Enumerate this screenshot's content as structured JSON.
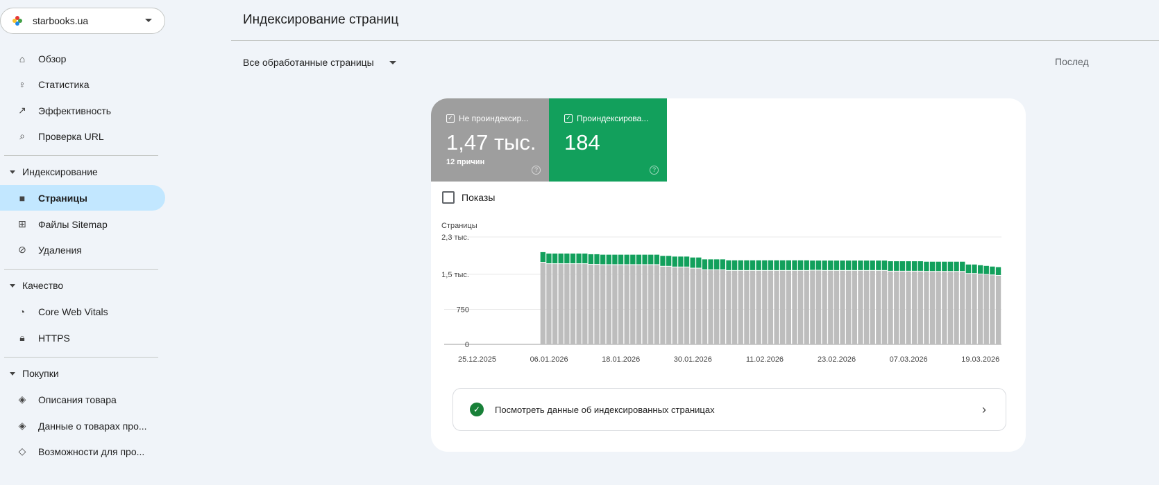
{
  "property": {
    "name": "starbooks.ua"
  },
  "sidebar": {
    "items": [
      {
        "label": "Обзор",
        "icon": "home-icon"
      },
      {
        "label": "Статистика",
        "icon": "lightbulb-icon"
      },
      {
        "label": "Эффективность",
        "icon": "trending-up-icon"
      },
      {
        "label": "Проверка URL",
        "icon": "search-icon"
      }
    ],
    "indexing": {
      "label": "Индексирование",
      "items": [
        {
          "label": "Страницы",
          "icon": "pages-icon"
        },
        {
          "label": "Файлы Sitemap",
          "icon": "sitemap-icon"
        },
        {
          "label": "Удаления",
          "icon": "eye-off-icon"
        }
      ]
    },
    "quality": {
      "label": "Качество",
      "items": [
        {
          "label": "Core Web Vitals",
          "icon": "gauge-icon"
        },
        {
          "label": "HTTPS",
          "icon": "lock-icon"
        }
      ]
    },
    "shopping": {
      "label": "Покупки",
      "items": [
        {
          "label": "Описания товара",
          "icon": "layers-icon"
        },
        {
          "label": "Данные о товарах про...",
          "icon": "layers-icon"
        },
        {
          "label": "Возможности для про...",
          "icon": "tag-icon"
        }
      ]
    }
  },
  "header": {
    "title": "Индексирование страниц",
    "filter": "Все обработанные страницы",
    "last": "Послед"
  },
  "tiles": {
    "not_indexed": {
      "label": "Не проиндексир...",
      "value": "1,47 тыс.",
      "sub": "12 причин",
      "color": "#9e9e9e"
    },
    "indexed": {
      "label": "Проиндексирова...",
      "value": "184",
      "color": "#12a05c"
    }
  },
  "shows_label": "Показы",
  "link_label": "Посмотреть данные об индексированных страницах",
  "chart_data": {
    "type": "bar",
    "stacked": true,
    "ylabel": "Страницы",
    "ylim": [
      0,
      2300
    ],
    "yticks": [
      {
        "v": 0,
        "label": "0"
      },
      {
        "v": 750,
        "label": "750"
      },
      {
        "v": 1500,
        "label": "1,5 тыс."
      },
      {
        "v": 2300,
        "label": "2,3 тыс."
      }
    ],
    "xtick_labels": [
      "25.12.2025",
      "06.01.2026",
      "18.01.2026",
      "30.01.2026",
      "11.02.2026",
      "23.02.2026",
      "07.03.2026",
      "19.03.2026"
    ],
    "start_date": "20.12.2025",
    "zero_days": 16,
    "series": [
      {
        "name": "Не проиндексированы",
        "color": "#bdbdbd",
        "values": [
          1750,
          1720,
          1720,
          1720,
          1720,
          1720,
          1720,
          1720,
          1705,
          1705,
          1700,
          1700,
          1700,
          1700,
          1700,
          1700,
          1700,
          1700,
          1700,
          1700,
          1665,
          1665,
          1650,
          1650,
          1650,
          1625,
          1625,
          1590,
          1590,
          1590,
          1590,
          1575,
          1575,
          1575,
          1575,
          1575,
          1575,
          1575,
          1575,
          1575,
          1575,
          1575,
          1575,
          1575,
          1575,
          1580,
          1580,
          1575,
          1575,
          1575,
          1575,
          1575,
          1575,
          1575,
          1575,
          1575,
          1575,
          1575,
          1560,
          1560,
          1560,
          1560,
          1560,
          1560,
          1555,
          1555,
          1555,
          1555,
          1555,
          1555,
          1555,
          1510,
          1510,
          1500,
          1490,
          1480,
          1470
        ]
      },
      {
        "name": "Проиндексированы",
        "color": "#12a05c",
        "values": [
          225,
          225,
          225,
          225,
          225,
          225,
          225,
          225,
          225,
          225,
          220,
          220,
          220,
          220,
          220,
          220,
          220,
          220,
          220,
          220,
          230,
          230,
          230,
          230,
          230,
          235,
          235,
          230,
          230,
          230,
          230,
          225,
          225,
          225,
          225,
          225,
          225,
          225,
          225,
          225,
          225,
          225,
          225,
          225,
          225,
          215,
          215,
          220,
          220,
          220,
          220,
          220,
          220,
          220,
          220,
          220,
          220,
          220,
          220,
          220,
          220,
          220,
          220,
          220,
          215,
          215,
          215,
          215,
          215,
          215,
          215,
          200,
          200,
          195,
          190,
          186,
          184
        ]
      }
    ]
  }
}
